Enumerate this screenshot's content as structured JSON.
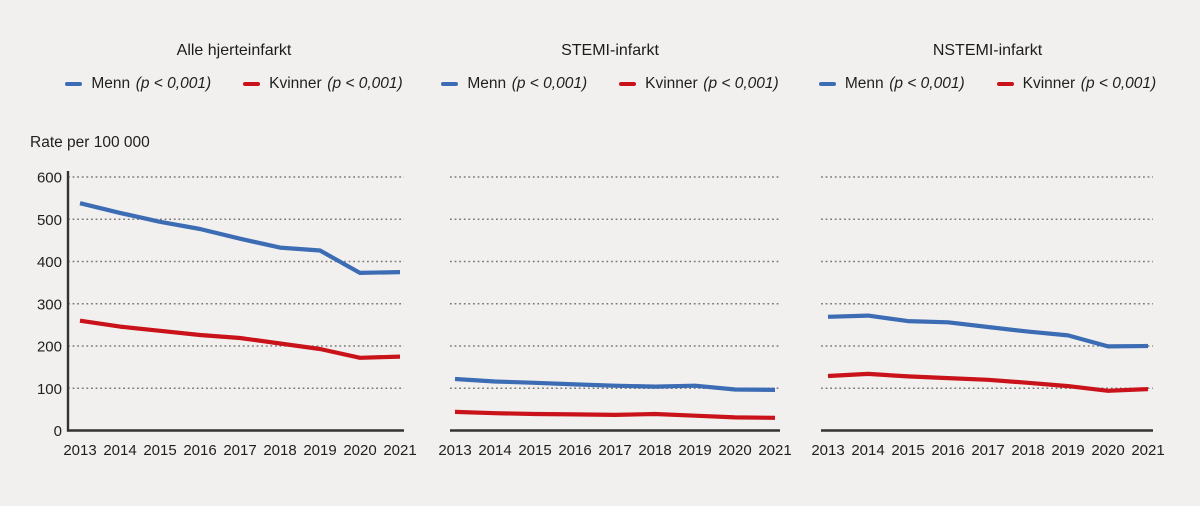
{
  "ylabel": "Rate per 100 000",
  "colors": {
    "background": "#f1f0ee",
    "menn": "#3c6cb4",
    "kvinner": "#c9121a",
    "grid": "#7a7a7a",
    "axis": "#333333",
    "text": "#1f1f1f"
  },
  "legend": {
    "menn_label": "Menn",
    "menn_p": "(p < 0,001)",
    "kvinner_label": "Kvinner",
    "kvinner_p": "(p < 0,001)"
  },
  "chart_data": [
    {
      "type": "line",
      "title": "Alle hjerteinfarkt",
      "x": [
        2013,
        2014,
        2015,
        2016,
        2017,
        2018,
        2019,
        2020,
        2021
      ],
      "series": [
        {
          "name": "Menn (p < 0,001)",
          "color_key": "menn",
          "values": [
            538,
            515,
            494,
            477,
            454,
            433,
            426,
            373,
            375
          ]
        },
        {
          "name": "Kvinner (p < 0,001)",
          "color_key": "kvinner",
          "values": [
            260,
            246,
            236,
            226,
            219,
            206,
            193,
            172,
            175
          ]
        }
      ],
      "ylim": [
        0,
        600
      ],
      "yticks": [
        600,
        500,
        400,
        300,
        200,
        100,
        0
      ],
      "grid": "dotted-horizontal",
      "legend_position": "top",
      "show_y_axis": true
    },
    {
      "type": "line",
      "title": "STEMI-infarkt",
      "x": [
        2013,
        2014,
        2015,
        2016,
        2017,
        2018,
        2019,
        2020,
        2021
      ],
      "series": [
        {
          "name": "Menn (p < 0,001)",
          "color_key": "menn",
          "values": [
            122,
            116,
            113,
            109,
            106,
            104,
            106,
            97,
            96
          ]
        },
        {
          "name": "Kvinner (p < 0,001)",
          "color_key": "kvinner",
          "values": [
            44,
            41,
            39,
            38,
            37,
            39,
            35,
            31,
            30
          ]
        }
      ],
      "ylim": [
        0,
        600
      ],
      "yticks": [
        600,
        500,
        400,
        300,
        200,
        100,
        0
      ],
      "grid": "dotted-horizontal",
      "legend_position": "top",
      "show_y_axis": false
    },
    {
      "type": "line",
      "title": "NSTEMI-infarkt",
      "x": [
        2013,
        2014,
        2015,
        2016,
        2017,
        2018,
        2019,
        2020,
        2021
      ],
      "series": [
        {
          "name": "Menn (p < 0,001)",
          "color_key": "menn",
          "values": [
            269,
            272,
            259,
            256,
            245,
            234,
            225,
            199,
            200
          ]
        },
        {
          "name": "Kvinner (p < 0,001)",
          "color_key": "kvinner",
          "values": [
            129,
            134,
            128,
            124,
            120,
            113,
            105,
            94,
            98
          ]
        }
      ],
      "ylim": [
        0,
        600
      ],
      "yticks": [
        600,
        500,
        400,
        300,
        200,
        100,
        0
      ],
      "grid": "dotted-horizontal",
      "legend_position": "top",
      "show_y_axis": false
    }
  ]
}
